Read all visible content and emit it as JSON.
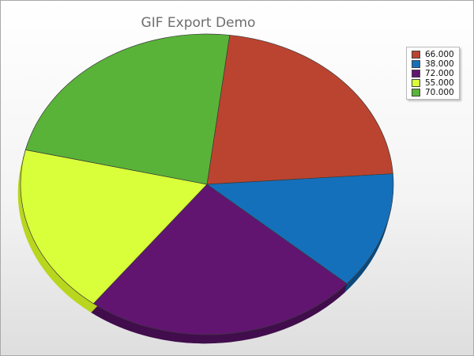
{
  "chart_data": {
    "type": "pie",
    "title": "GIF Export Demo",
    "values": [
      66,
      38,
      72,
      55,
      70
    ],
    "legend_labels": [
      "66.000",
      "38.000",
      "72.000",
      "55.000",
      "70.000"
    ],
    "colors": [
      "#bb4430",
      "#1570bb",
      "#611571",
      "#d9ff3a",
      "#59b339"
    ],
    "shadow_colors": [
      "#7e2d1f",
      "#0d4a7d",
      "#420e4d",
      "#b9d61f",
      "#3f8f25"
    ],
    "legend_position": "top-right",
    "style": "3d-tilted"
  }
}
